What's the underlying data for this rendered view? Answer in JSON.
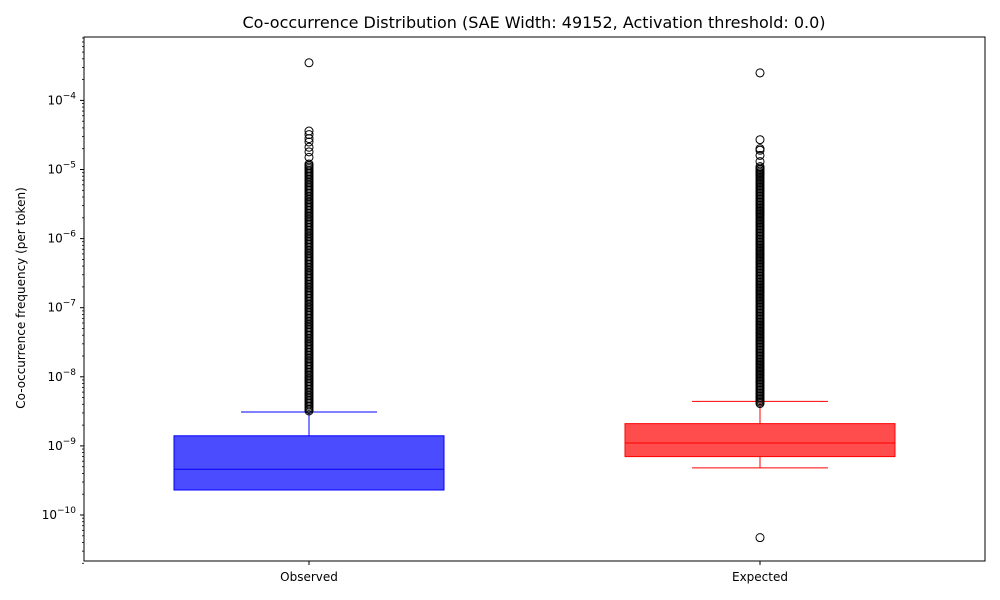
{
  "chart_data": {
    "type": "box",
    "title": "Co-occurrence Distribution (SAE Width: 49152, Activation threshold: 0.0)",
    "xlabel": "",
    "ylabel": "Co-occurrence frequency (per token)",
    "yscale": "log",
    "ylim": [
      2e-11,
      0.0008
    ],
    "y_ticks": [
      {
        "value": 1e-10,
        "base": "10",
        "exp": "−10"
      },
      {
        "value": 1e-09,
        "base": "10",
        "exp": "−9"
      },
      {
        "value": 1e-08,
        "base": "10",
        "exp": "−8"
      },
      {
        "value": 1e-07,
        "base": "10",
        "exp": "−7"
      },
      {
        "value": 1e-06,
        "base": "10",
        "exp": "−6"
      },
      {
        "value": 1e-05,
        "base": "10",
        "exp": "−5"
      },
      {
        "value": 0.0001,
        "base": "10",
        "exp": "−4"
      }
    ],
    "categories": [
      "Observed",
      "Expected"
    ],
    "series": [
      {
        "name": "Observed",
        "color": "#0000ff",
        "whisker_low": 2.3e-10,
        "q1": 2.3e-10,
        "median": 4.6e-10,
        "q3": 1.4e-09,
        "whisker_high": 3.1e-09,
        "outliers_dense_range": [
          3.2e-09,
          1.2e-05
        ],
        "outliers_sparse": [
          1.5e-05,
          1.8e-05,
          2.1e-05,
          2.5e-05,
          2.8e-05,
          3.2e-05,
          3.6e-05,
          0.00035
        ]
      },
      {
        "name": "Expected",
        "color": "#ff0000",
        "whisker_low": 4.8e-10,
        "q1": 7e-10,
        "median": 1.1e-09,
        "q3": 2.1e-09,
        "whisker_high": 4.4e-09,
        "outliers_dense_range": [
          4.1e-09,
          1.1e-05
        ],
        "outliers_sparse": [
          1.3e-05,
          1.6e-05,
          1.9e-05,
          2e-05,
          2.7e-05,
          0.00025,
          4.7e-11
        ]
      }
    ]
  }
}
